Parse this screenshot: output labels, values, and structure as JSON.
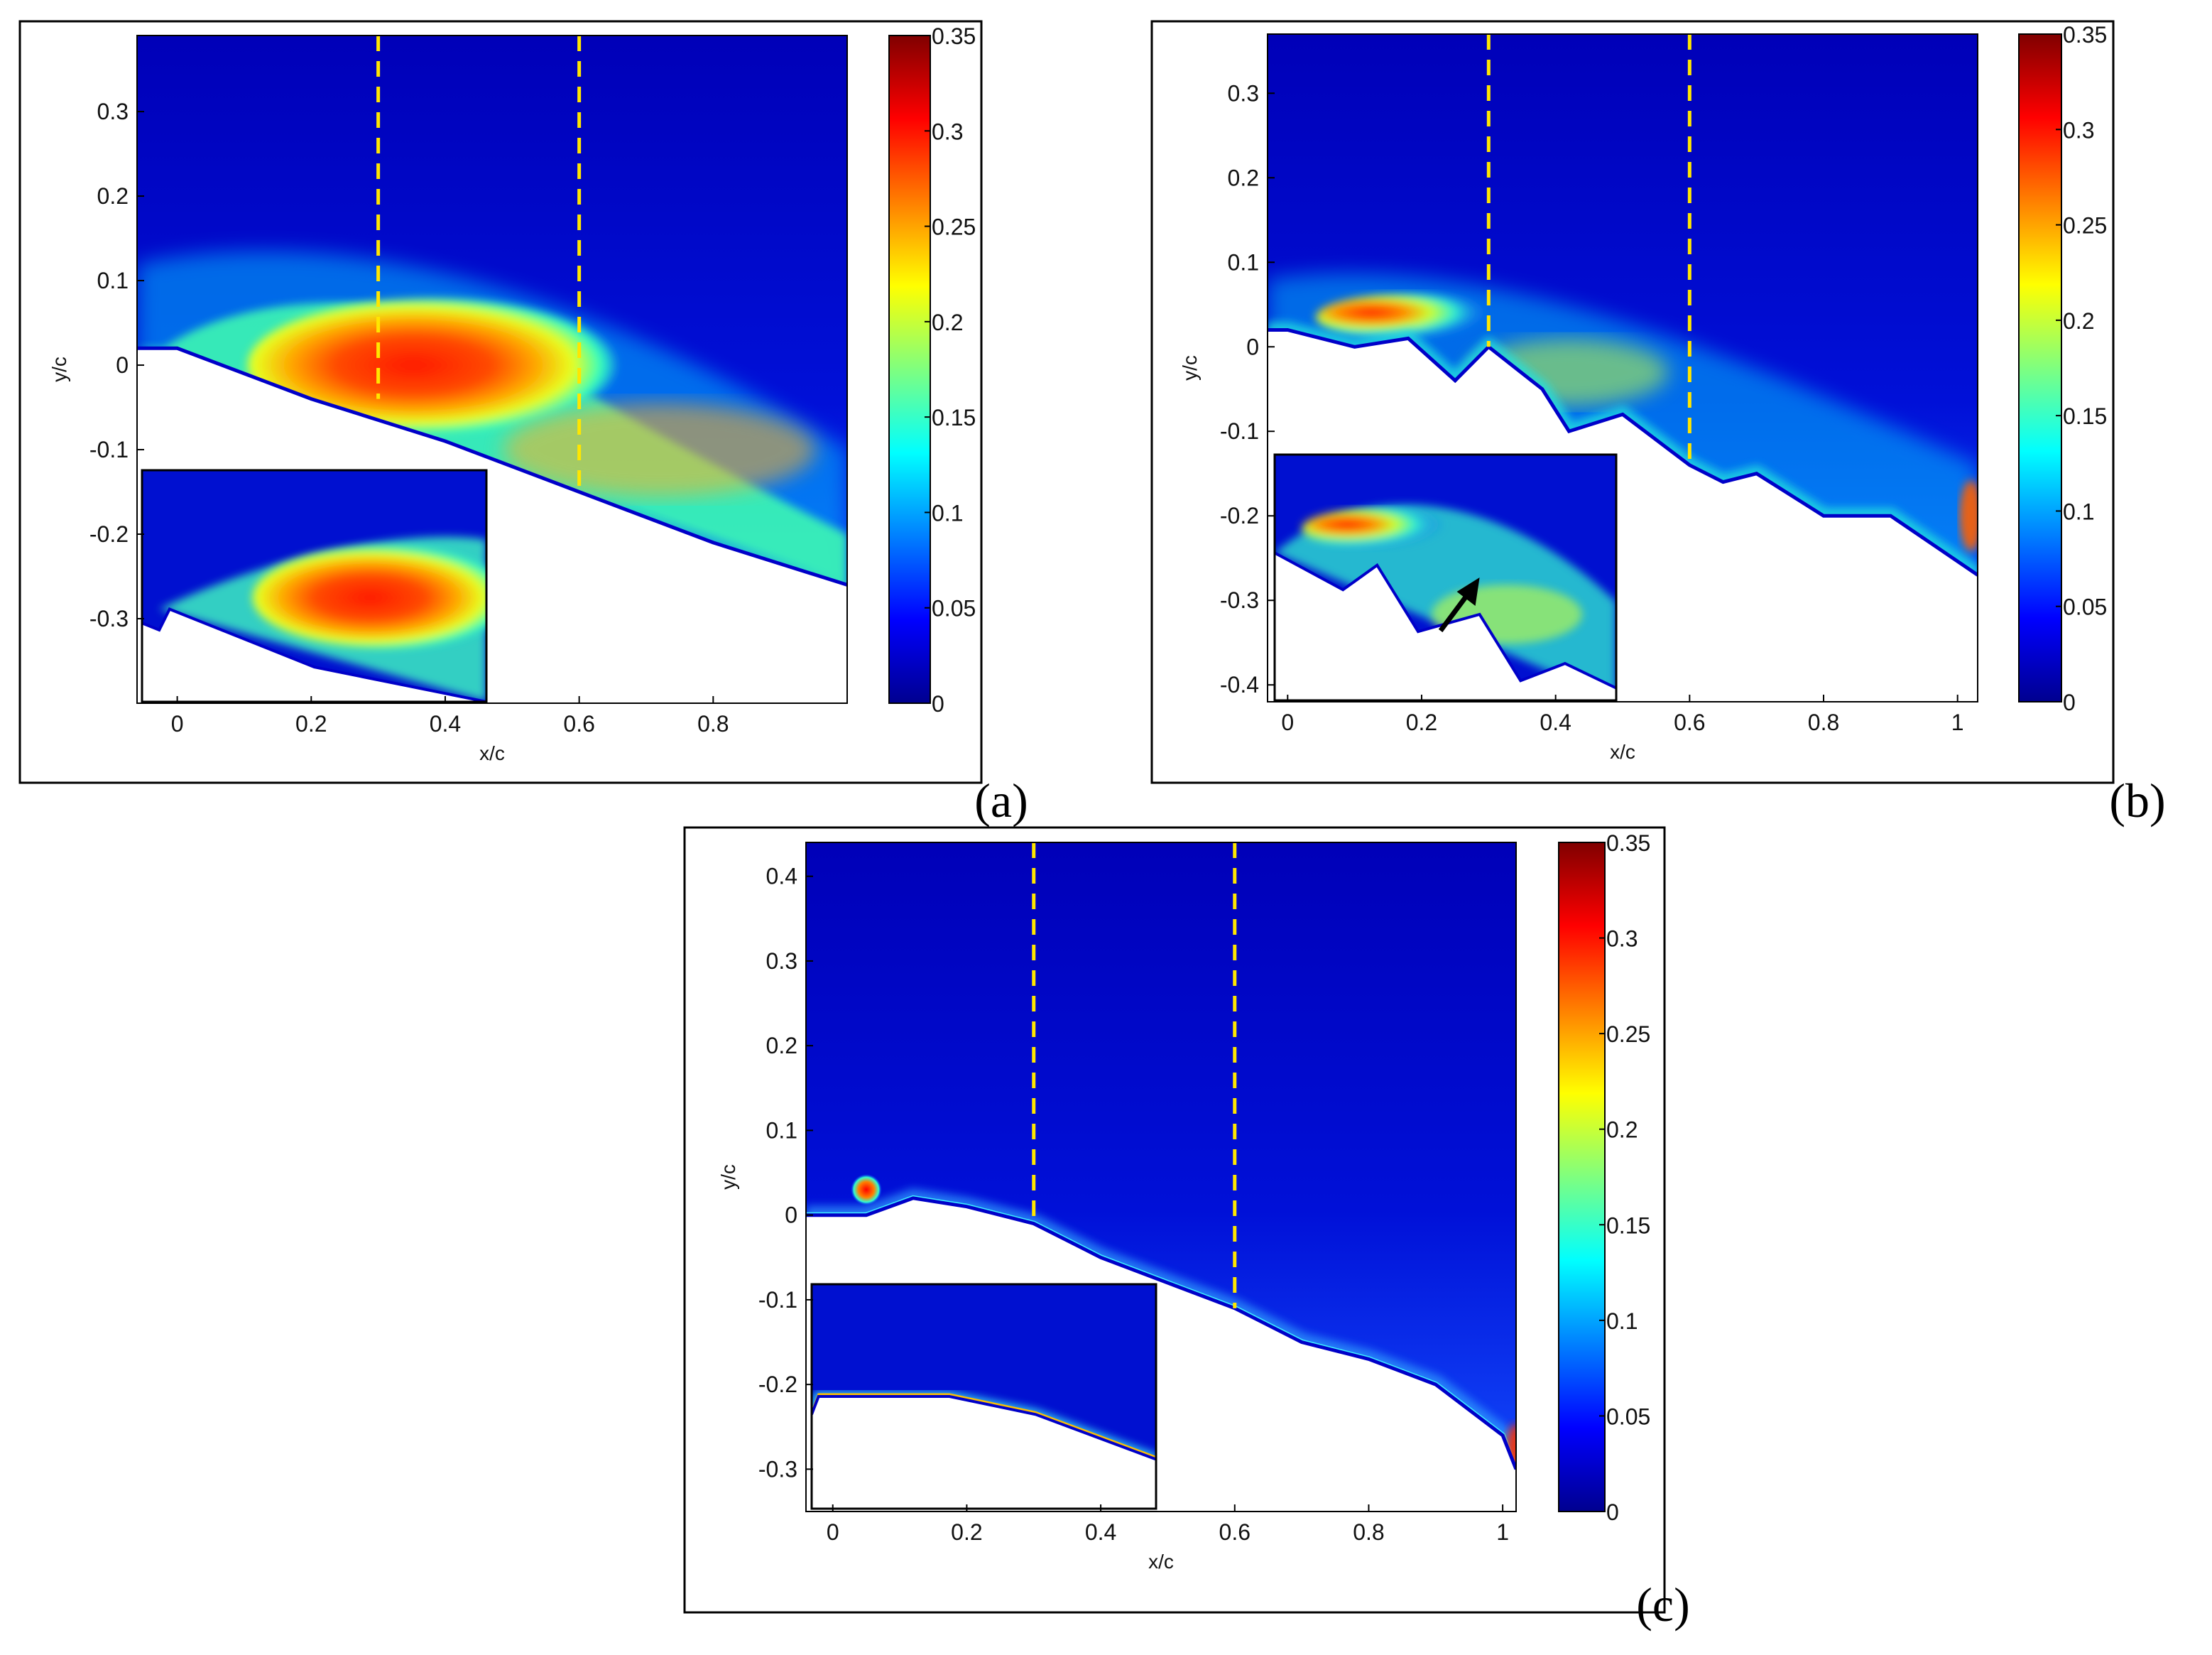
{
  "chart_data": [
    {
      "panel": "(a)",
      "type": "heatmap",
      "xlabel": "x/c",
      "ylabel": "y/c",
      "xlim": [
        -0.06,
        1.0
      ],
      "ylim": [
        -0.4,
        0.39
      ],
      "xticks": [
        "0",
        "0.2",
        "0.4",
        "0.6",
        "0.8"
      ],
      "xtick_values": [
        0,
        0.2,
        0.4,
        0.6,
        0.8
      ],
      "yticks": [
        "0.3",
        "0.2",
        "0.1",
        "0",
        "-0.1",
        "-0.2",
        "-0.3"
      ],
      "ytick_values": [
        0.3,
        0.2,
        0.1,
        0,
        -0.1,
        -0.2,
        -0.3
      ],
      "colorbar": {
        "min": 0,
        "max": 0.35,
        "ticks": [
          "0.35",
          "0.3",
          "0.25",
          "0.2",
          "0.15",
          "0.1",
          "0.05",
          "0"
        ],
        "tick_values": [
          0.35,
          0.3,
          0.25,
          0.2,
          0.15,
          0.1,
          0.05,
          0
        ]
      },
      "dashed_lines_x": [
        0.3,
        0.6
      ],
      "dashed_line_color": "#ffe600",
      "surface": [
        [
          -0.06,
          0.02
        ],
        [
          0,
          0.02
        ],
        [
          0.2,
          -0.04
        ],
        [
          0.4,
          -0.09
        ],
        [
          0.6,
          -0.15
        ],
        [
          0.8,
          -0.21
        ],
        [
          1.0,
          -0.26
        ]
      ],
      "peak_intensity": 0.33,
      "inset": true
    },
    {
      "panel": "(b)",
      "type": "heatmap",
      "xlabel": "x/c",
      "ylabel": "y/c",
      "xlim": [
        -0.03,
        1.03
      ],
      "ylim": [
        -0.42,
        0.37
      ],
      "xticks": [
        "0",
        "0.2",
        "0.4",
        "0.6",
        "0.8",
        "1"
      ],
      "xtick_values": [
        0,
        0.2,
        0.4,
        0.6,
        0.8,
        1.0
      ],
      "yticks": [
        "0.3",
        "0.2",
        "0.1",
        "0",
        "-0.1",
        "-0.2",
        "-0.3",
        "-0.4"
      ],
      "ytick_values": [
        0.3,
        0.2,
        0.1,
        0,
        -0.1,
        -0.2,
        -0.3,
        -0.4
      ],
      "colorbar": {
        "min": 0,
        "max": 0.35,
        "ticks": [
          "0.35",
          "0.3",
          "0.25",
          "0.2",
          "0.15",
          "0.1",
          "0.05",
          "0"
        ],
        "tick_values": [
          0.35,
          0.3,
          0.25,
          0.2,
          0.15,
          0.1,
          0.05,
          0
        ]
      },
      "dashed_lines_x": [
        0.3,
        0.6
      ],
      "dashed_line_color": "#ffe600",
      "surface": [
        [
          -0.03,
          0.02
        ],
        [
          0,
          0.02
        ],
        [
          0.1,
          0.0
        ],
        [
          0.18,
          0.01
        ],
        [
          0.25,
          -0.04
        ],
        [
          0.3,
          0.0
        ],
        [
          0.38,
          -0.05
        ],
        [
          0.42,
          -0.1
        ],
        [
          0.5,
          -0.08
        ],
        [
          0.6,
          -0.14
        ],
        [
          0.65,
          -0.16
        ],
        [
          0.7,
          -0.15
        ],
        [
          0.8,
          -0.2
        ],
        [
          0.9,
          -0.2
        ],
        [
          1.03,
          -0.27
        ]
      ],
      "peak_intensity": 0.31,
      "inset": true,
      "inset_arrow": true
    },
    {
      "panel": "(c)",
      "type": "heatmap",
      "xlabel": "x/c",
      "ylabel": "y/c",
      "xlim": [
        -0.04,
        1.02
      ],
      "ylim": [
        -0.35,
        0.44
      ],
      "xticks": [
        "0",
        "0.2",
        "0.4",
        "0.6",
        "0.8",
        "1"
      ],
      "xtick_values": [
        0,
        0.2,
        0.4,
        0.6,
        0.8,
        1.0
      ],
      "yticks": [
        "0.4",
        "0.3",
        "0.2",
        "0.1",
        "0",
        "-0.1",
        "-0.2",
        "-0.3"
      ],
      "ytick_values": [
        0.4,
        0.3,
        0.2,
        0.1,
        0,
        -0.1,
        -0.2,
        -0.3
      ],
      "colorbar": {
        "min": 0,
        "max": 0.35,
        "ticks": [
          "0.35",
          "0.3",
          "0.25",
          "0.2",
          "0.15",
          "0.1",
          "0.05",
          "0"
        ],
        "tick_values": [
          0.35,
          0.3,
          0.25,
          0.2,
          0.15,
          0.1,
          0.05,
          0
        ]
      },
      "dashed_lines_x": [
        0.3,
        0.6
      ],
      "dashed_line_color": "#ffe600",
      "surface": [
        [
          -0.04,
          0.0
        ],
        [
          0.05,
          0.0
        ],
        [
          0.12,
          0.02
        ],
        [
          0.2,
          0.01
        ],
        [
          0.3,
          -0.01
        ],
        [
          0.4,
          -0.05
        ],
        [
          0.5,
          -0.08
        ],
        [
          0.6,
          -0.11
        ],
        [
          0.7,
          -0.15
        ],
        [
          0.8,
          -0.17
        ],
        [
          0.9,
          -0.2
        ],
        [
          1.0,
          -0.26
        ],
        [
          1.02,
          -0.3
        ]
      ],
      "hotspot": {
        "x": 0.05,
        "y": 0.03
      },
      "peak_intensity": 0.35,
      "inset": true
    }
  ]
}
